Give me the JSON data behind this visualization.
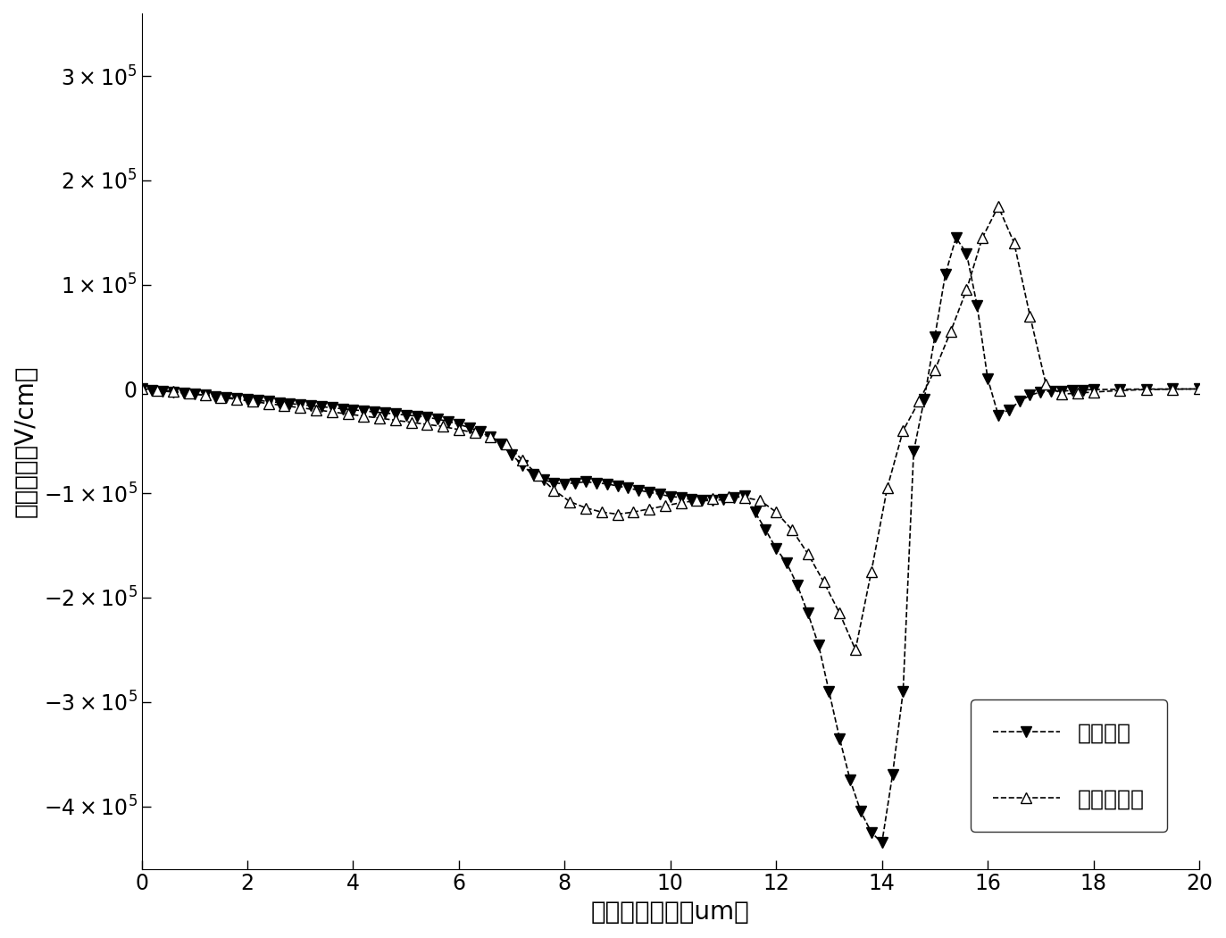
{
  "title": "",
  "xlabel": "器件横向位置（um）",
  "ylabel": "纵向电场（V/cm）",
  "xlim": [
    0,
    20
  ],
  "ylim": [
    -460000,
    360000
  ],
  "xticks": [
    0,
    2,
    4,
    6,
    8,
    10,
    12,
    14,
    16,
    18,
    20
  ],
  "ytick_positions": [
    -400000,
    -300000,
    -200000,
    -100000,
    0,
    100000,
    200000,
    300000
  ],
  "series1_label": "一般结构",
  "series2_label": "本发明结构",
  "series1_x": [
    0.0,
    0.2,
    0.4,
    0.6,
    0.8,
    1.0,
    1.2,
    1.4,
    1.6,
    1.8,
    2.0,
    2.2,
    2.4,
    2.6,
    2.8,
    3.0,
    3.2,
    3.4,
    3.6,
    3.8,
    4.0,
    4.2,
    4.4,
    4.6,
    4.8,
    5.0,
    5.2,
    5.4,
    5.6,
    5.8,
    6.0,
    6.2,
    6.4,
    6.6,
    6.8,
    7.0,
    7.2,
    7.4,
    7.6,
    7.8,
    8.0,
    8.2,
    8.4,
    8.6,
    8.8,
    9.0,
    9.2,
    9.4,
    9.6,
    9.8,
    10.0,
    10.2,
    10.4,
    10.6,
    10.8,
    11.0,
    11.2,
    11.4,
    11.6,
    11.8,
    12.0,
    12.2,
    12.4,
    12.6,
    12.8,
    13.0,
    13.2,
    13.4,
    13.6,
    13.8,
    14.0,
    14.2,
    14.4,
    14.6,
    14.8,
    15.0,
    15.2,
    15.4,
    15.6,
    15.8,
    16.0,
    16.2,
    16.4,
    16.6,
    16.8,
    17.0,
    17.2,
    17.4,
    17.6,
    17.8,
    18.0,
    18.5,
    19.0,
    19.5,
    20.0
  ],
  "series1_y": [
    0,
    -1000,
    -2000,
    -3000,
    -4000,
    -5000,
    -6000,
    -7000,
    -8000,
    -9000,
    -10000,
    -11000,
    -12000,
    -13000,
    -14000,
    -15000,
    -16000,
    -17000,
    -18000,
    -19000,
    -20000,
    -21000,
    -22000,
    -23000,
    -24000,
    -25000,
    -26000,
    -27000,
    -29000,
    -31000,
    -34000,
    -37000,
    -41000,
    -46000,
    -53000,
    -63000,
    -73000,
    -82000,
    -87000,
    -90000,
    -91000,
    -90000,
    -89000,
    -90000,
    -91000,
    -93000,
    -95000,
    -97000,
    -99000,
    -101000,
    -103000,
    -104000,
    -106000,
    -107000,
    -107000,
    -106000,
    -104000,
    -102000,
    -118000,
    -135000,
    -153000,
    -167000,
    -188000,
    -215000,
    -245000,
    -290000,
    -335000,
    -375000,
    -405000,
    -425000,
    -435000,
    -370000,
    -290000,
    -60000,
    -10000,
    50000,
    110000,
    145000,
    130000,
    80000,
    10000,
    -25000,
    -20000,
    -12000,
    -6000,
    -3000,
    -2000,
    -2000,
    -1500,
    -1000,
    -500,
    -300,
    -100,
    -50,
    0
  ],
  "series2_x": [
    0.0,
    0.3,
    0.6,
    0.9,
    1.2,
    1.5,
    1.8,
    2.1,
    2.4,
    2.7,
    3.0,
    3.3,
    3.6,
    3.9,
    4.2,
    4.5,
    4.8,
    5.1,
    5.4,
    5.7,
    6.0,
    6.3,
    6.6,
    6.9,
    7.2,
    7.5,
    7.8,
    8.1,
    8.4,
    8.7,
    9.0,
    9.3,
    9.6,
    9.9,
    10.2,
    10.5,
    10.8,
    11.1,
    11.4,
    11.7,
    12.0,
    12.3,
    12.6,
    12.9,
    13.2,
    13.5,
    13.8,
    14.1,
    14.4,
    14.7,
    15.0,
    15.3,
    15.6,
    15.9,
    16.2,
    16.5,
    16.8,
    17.1,
    17.4,
    17.7,
    18.0,
    18.5,
    19.0,
    19.5,
    20.0
  ],
  "series2_y": [
    0,
    -1000,
    -2000,
    -4000,
    -6000,
    -8000,
    -10000,
    -12000,
    -14000,
    -16000,
    -18000,
    -20000,
    -22000,
    -24000,
    -26000,
    -28000,
    -30000,
    -32000,
    -34000,
    -36000,
    -39000,
    -42000,
    -46000,
    -53000,
    -68000,
    -83000,
    -97000,
    -108000,
    -114000,
    -118000,
    -120000,
    -118000,
    -115000,
    -112000,
    -109000,
    -107000,
    -105000,
    -103000,
    -104000,
    -107000,
    -118000,
    -135000,
    -158000,
    -185000,
    -215000,
    -250000,
    -175000,
    -95000,
    -40000,
    -12000,
    18000,
    55000,
    95000,
    145000,
    175000,
    140000,
    70000,
    5000,
    -5000,
    -4000,
    -3000,
    -1500,
    -500,
    -200,
    0
  ],
  "marker_size": 9,
  "line_color": "black",
  "background_color": "white",
  "legend_fontsize": 18,
  "axis_fontsize": 20,
  "tick_fontsize": 17
}
